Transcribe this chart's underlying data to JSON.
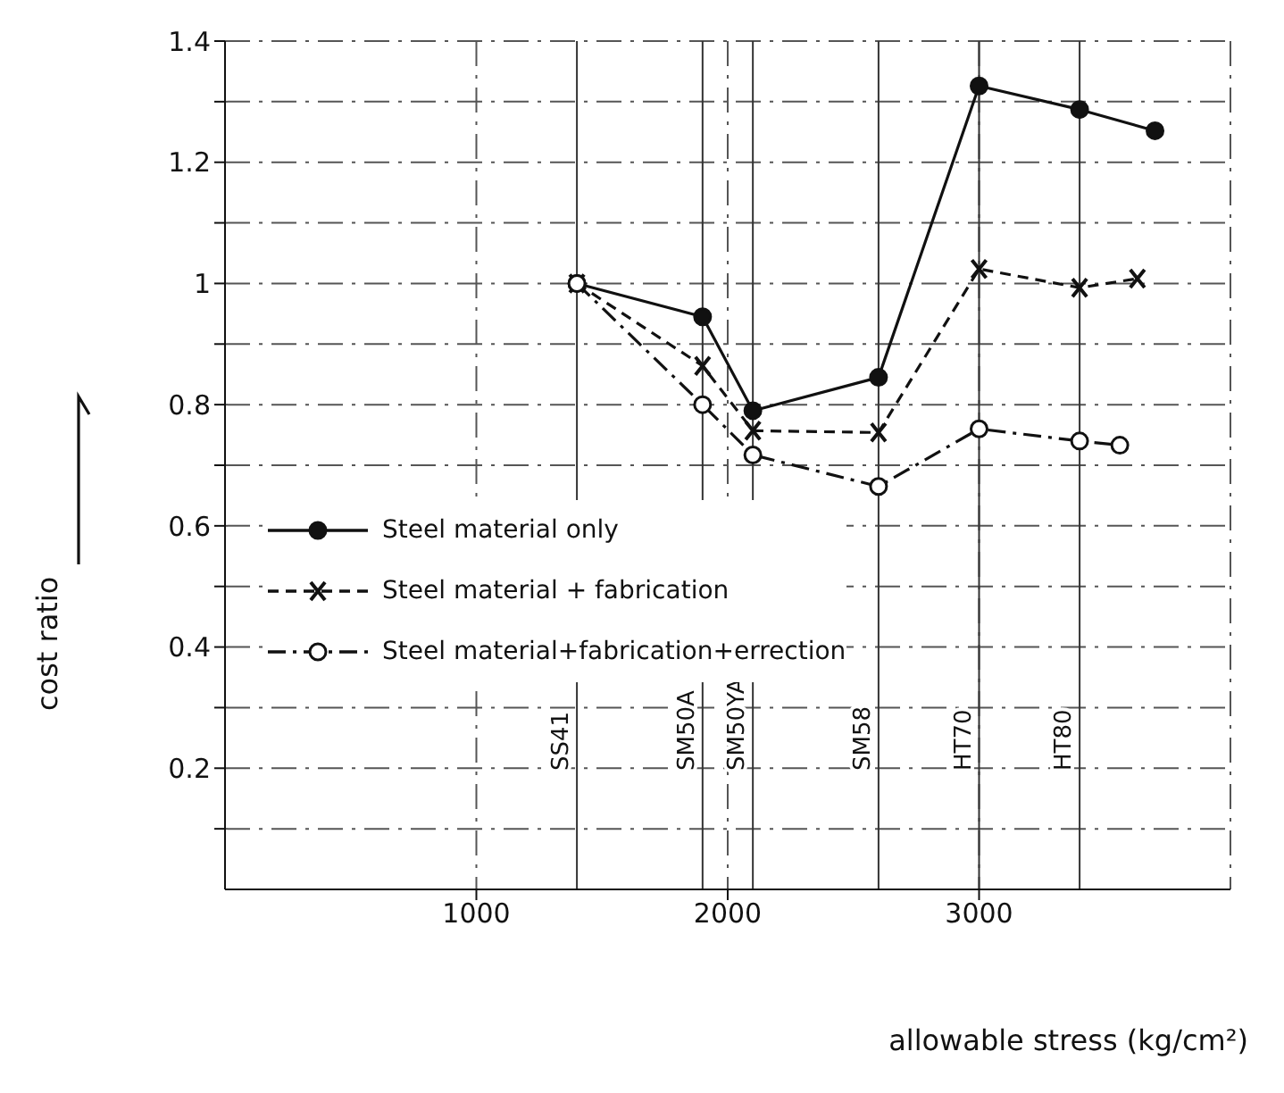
{
  "chart_data": {
    "type": "line",
    "xlabel": "allowable stress (kg/cm²)",
    "ylabel": "cost ratio",
    "xlim": [
      0,
      4000
    ],
    "ylim": [
      0,
      1.4
    ],
    "xticks": [
      1000,
      2000,
      3000
    ],
    "yticks": [
      {
        "value": 0.1,
        "label": null
      },
      0.2,
      {
        "value": 0.3,
        "label": null
      },
      0.4,
      {
        "value": 0.5,
        "label": null
      },
      0.6,
      {
        "value": 0.7,
        "label": null
      },
      0.8,
      {
        "value": 0.9,
        "label": null
      },
      1.0,
      {
        "value": 1.1,
        "label": null
      },
      1.2,
      {
        "value": 1.3,
        "label": null
      },
      1.4
    ],
    "grid": true,
    "legend": "left",
    "series": [
      {
        "name": "Steel material only",
        "color": "#111111",
        "marker": "circle",
        "line_style": "solid",
        "x": [
          1400,
          1900,
          2100,
          2600,
          3000,
          3400,
          3700
        ],
        "values": [
          1.0,
          0.945,
          0.79,
          0.845,
          1.326,
          1.287,
          1.252
        ]
      },
      {
        "name": "Steel material + fabrication",
        "color": "#111111",
        "marker": "cross",
        "line_style": "dashed",
        "x": [
          1400,
          1900,
          2100,
          2600,
          3000,
          3400,
          3630
        ],
        "values": [
          1.0,
          0.864,
          0.757,
          0.754,
          1.024,
          0.993,
          1.008
        ]
      },
      {
        "name": "Steel material+fabrication+errection",
        "color": "#111111",
        "marker": "circle",
        "line_style": "dashdot",
        "x": [
          1400,
          1900,
          2100,
          2600,
          3000,
          3400,
          3560
        ],
        "values": [
          1.0,
          0.8,
          0.717,
          0.665,
          0.76,
          0.74,
          0.733
        ]
      }
    ],
    "ref_lines": [
      {
        "axis": "x",
        "value": 1400,
        "label": "SS41"
      },
      {
        "axis": "x",
        "value": 1900,
        "label": "SM50A"
      },
      {
        "axis": "x",
        "value": 2100,
        "label": "SM50YA"
      },
      {
        "axis": "x",
        "value": 2600,
        "label": "SM58"
      },
      {
        "axis": "x",
        "value": 3000,
        "label": "HT70"
      },
      {
        "axis": "x",
        "value": 3400,
        "label": "HT80"
      }
    ]
  }
}
